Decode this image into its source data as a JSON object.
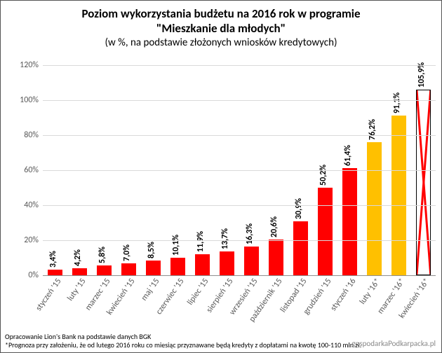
{
  "title": {
    "line1": "Poziom wykorzystania budżetu na 2016 rok w programie",
    "line2": "\"Mieszkanie dla młodych\"",
    "sub": "(w %, na podstawie złożonych wniosków kredytowych)",
    "fontsize_main": 17,
    "fontsize_sub": 15
  },
  "chart": {
    "type": "bar",
    "ylim": [
      0,
      120
    ],
    "ytick_step": 20,
    "ytick_suffix": "%",
    "background_color": "#ffffff",
    "grid_color": "#d9d9d9",
    "axis_color": "#8f8f8f",
    "tick_label_color": "#595959",
    "tick_fontsize": 12,
    "xlabel_fontsize": 12,
    "datalabel_fontsize": 12,
    "bar_width_ratio": 0.62,
    "categories": [
      "styczeń '15",
      "luty '15",
      "marzec '15",
      "kwiecień '15",
      "maj '15",
      "czerwiec '15",
      "lipiec '15",
      "sierpień '15",
      "wrzesień '15",
      "październik '15",
      "listopad '15",
      "grudzień '15",
      "styczeń '16",
      "luty '16*",
      "marzec '16*",
      "kwiecień '16*"
    ],
    "values": [
      3.4,
      4.2,
      5.8,
      7.0,
      8.5,
      10.1,
      11.9,
      13.7,
      16.3,
      20.6,
      30.9,
      50.2,
      61.4,
      76.2,
      91.1,
      105.9
    ],
    "value_labels": [
      "3,4%",
      "4,2%",
      "5,8%",
      "7,0%",
      "8,5%",
      "10,1%",
      "11,9%",
      "13,7%",
      "16,3%",
      "20,6%",
      "30,9%",
      "50,2%",
      "61,4%",
      "76,2%",
      "91,1%",
      "105,9%"
    ],
    "bar_fill_colors": [
      "#ff0000",
      "#ff0000",
      "#ff0000",
      "#ff0000",
      "#ff0000",
      "#ff0000",
      "#ff0000",
      "#ff0000",
      "#ff0000",
      "#ff0000",
      "#ff0000",
      "#ff0000",
      "#ff0000",
      "#ffc000",
      "#ffc000",
      "#ffffff"
    ],
    "bar_border_colors": [
      "#ff0000",
      "#ff0000",
      "#ff0000",
      "#ff0000",
      "#ff0000",
      "#ff0000",
      "#ff0000",
      "#ff0000",
      "#ff0000",
      "#ff0000",
      "#ff0000",
      "#ff0000",
      "#ff0000",
      "#ffc000",
      "#ffc000",
      "#000000"
    ],
    "cross_mark_index": 15,
    "cross_color": "#ff0000"
  },
  "footer": {
    "line1": "Opracowanie Lion's Bank na podstawie danych BGK",
    "line2": "*Prognoza przy założeniu, że od lutego 2016 roku co miesiąc przyznawane będą kredyty z dopłatami na kwotę 100-110 mln zł.",
    "fontsize": 10
  },
  "watermark": {
    "text": "gospodarkaPodkarpacka.pl",
    "fontsize": 11
  }
}
